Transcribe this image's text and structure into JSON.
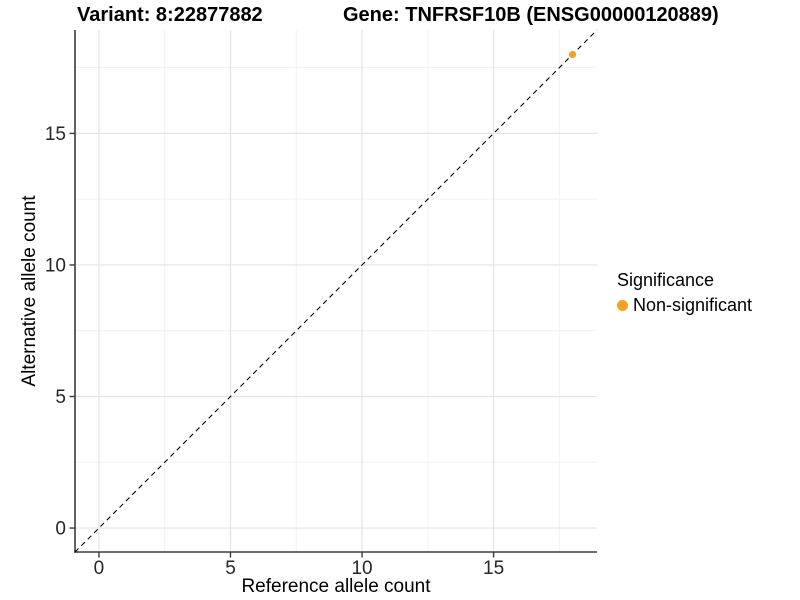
{
  "titles": {
    "variant": "Variant: 8:22877882",
    "gene": "Gene: TNFRSF10B (ENSG00000120889)"
  },
  "legend": {
    "title": "Significance",
    "items": [
      {
        "label": "Non-significant",
        "color": "#F9A024"
      }
    ]
  },
  "colors": {
    "background": "#FFFFFF",
    "grid_major": "#E4E4E4",
    "grid_minor": "#F1F1F1",
    "axis_line": "#3C3C3C",
    "tick_mark": "#3C3C3C",
    "tick_text": "#262626",
    "identity_line": "#000000"
  },
  "chart_data": {
    "type": "scatter",
    "xlabel": "Reference allele count",
    "ylabel": "Alternative allele count",
    "xlim": [
      -0.91,
      18.93
    ],
    "ylim": [
      -0.91,
      18.93
    ],
    "xticks": [
      0,
      5,
      10,
      15
    ],
    "yticks": [
      0,
      5,
      10,
      15
    ],
    "xticks_minor": [
      2.5,
      7.5,
      12.5,
      17.5
    ],
    "yticks_minor": [
      2.5,
      7.5,
      12.5,
      17.5
    ],
    "grid": "major+minor",
    "legend_position": "right",
    "identity_line": {
      "slope": 1,
      "intercept": 0,
      "linetype": "dashed"
    },
    "series": [
      {
        "name": "Non-significant",
        "color": "#F9A024",
        "marker": "circle",
        "points": [
          {
            "x": 18,
            "y": 18
          }
        ]
      }
    ]
  }
}
